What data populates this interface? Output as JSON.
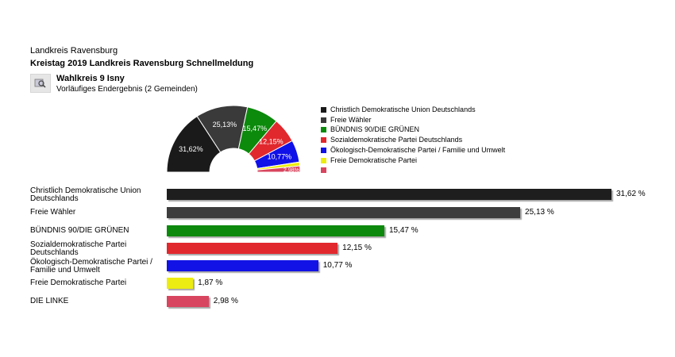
{
  "header": {
    "region": "Landkreis Ravensburg",
    "title": "Kreistag 2019 Landkreis Ravensburg Schnellmeldung",
    "district": "Wahlkreis 9 Isny",
    "subtitle": "Vorläufiges Endergebnis (2 Gemeinden)"
  },
  "chart_data": [
    {
      "type": "pie",
      "variant": "semicircle-donut",
      "legend_position": "right",
      "slices": [
        {
          "name": "Christlich Demokratische Union Deutschlands",
          "value": 31.62,
          "label": "31,62%",
          "color": "#1a1a1a"
        },
        {
          "name": "Freie Wähler",
          "value": 25.13,
          "label": "25,13%",
          "color": "#3a3a3a"
        },
        {
          "name": "BÜNDNIS 90/DIE GRÜNEN",
          "value": 15.47,
          "label": "15,47%",
          "color": "#0b8a0b"
        },
        {
          "name": "Sozialdemokratische Partei Deutschlands",
          "value": 12.15,
          "label": "12,15%",
          "color": "#e1282d"
        },
        {
          "name": "Ökologisch-Demokratische Partei / Familie und Umwelt",
          "value": 10.77,
          "label": "10,77%",
          "color": "#1010e8"
        },
        {
          "name": "Freie Demokratische Partei",
          "value": 1.87,
          "label": "",
          "color": "#ecec10"
        },
        {
          "name": "",
          "value": 2.98,
          "label": "2,98%",
          "color": "#d8455e"
        }
      ]
    },
    {
      "type": "bar",
      "orientation": "horizontal",
      "xlim": [
        0,
        31.62
      ],
      "unit": "%",
      "bars": [
        {
          "name": "Christlich Demokratische Union Deutschlands",
          "value": 31.62,
          "label": "31,62 %",
          "color": "#1e1e1e"
        },
        {
          "name": "Freie Wähler",
          "value": 25.13,
          "label": "25,13 %",
          "color": "#3d3d3d"
        },
        {
          "name": "BÜNDNIS 90/DIE GRÜNEN",
          "value": 15.47,
          "label": "15,47 %",
          "color": "#0d8a0d"
        },
        {
          "name": "Sozialdemokratische Partei Deutschlands",
          "value": 12.15,
          "label": "12,15 %",
          "color": "#e1282d"
        },
        {
          "name": "Ökologisch-Demokratische Partei / Familie und Umwelt",
          "value": 10.77,
          "label": "10,77 %",
          "color": "#1212e6"
        },
        {
          "name": "Freie Demokratische Partei",
          "value": 1.87,
          "label": "1,87 %",
          "color": "#ecec12"
        },
        {
          "name": "DIE LINKE",
          "value": 2.98,
          "label": "2,98 %",
          "color": "#d8455e"
        }
      ]
    }
  ],
  "icons": {
    "district_icon": "map-search-icon"
  }
}
